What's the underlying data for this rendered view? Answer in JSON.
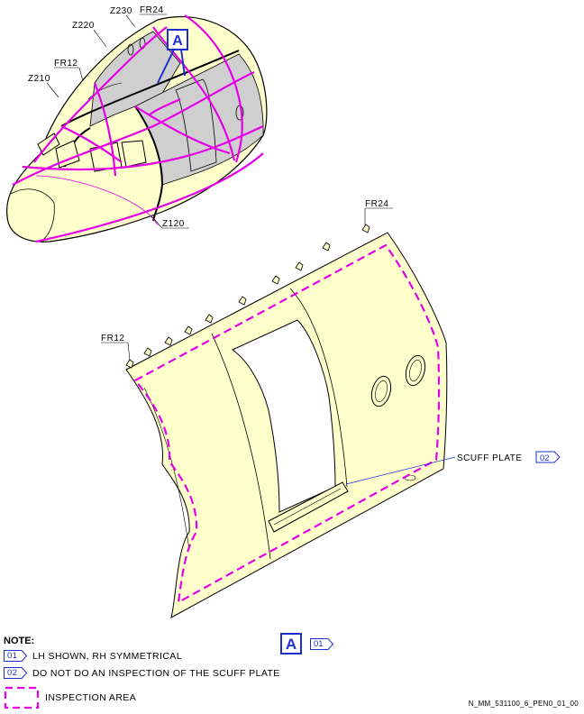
{
  "figure": {
    "zones": [
      "Z230",
      "Z220",
      "Z210",
      "Z120"
    ],
    "frames": {
      "fr24": "FR24",
      "fr12": "FR12"
    },
    "view_ref": "A",
    "scuff_plate_label": "SCUFF PLATE",
    "scuff_plate_note": "02"
  },
  "notes": {
    "title": "NOTE:",
    "items": [
      {
        "tag": "01",
        "text": "LH SHOWN, RH SYMMETRICAL"
      },
      {
        "tag": "02",
        "text": "DO NOT DO AN INSPECTION OF THE SCUFF PLATE"
      }
    ],
    "legend_text": "INSPECTION AREA"
  },
  "view_a_note": "01",
  "footer": "N_MM_531100_6_PEN0_01_00",
  "colors": {
    "panel_fill": "#ffffcc",
    "inspection_magenta": "#e600e6",
    "ref_blue": "#1e2fcf",
    "grey_zone": "#c8c8c8"
  }
}
